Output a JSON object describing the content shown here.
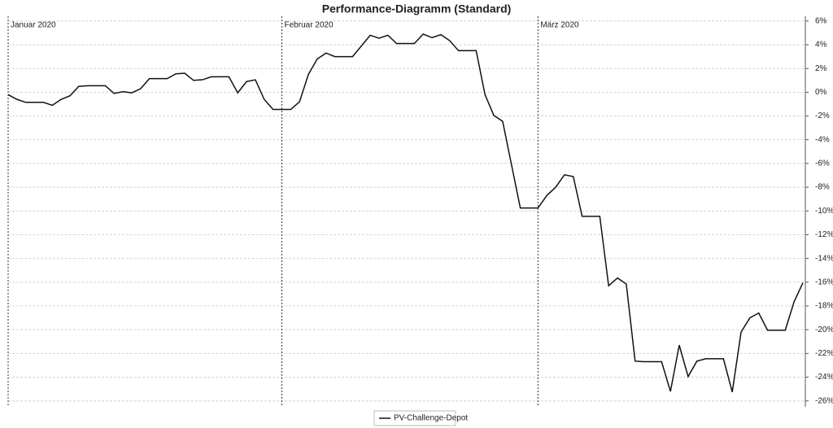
{
  "chart_data": {
    "type": "line",
    "title": "Performance-Diagramm (Standard)",
    "categories": [
      "Januar 2020",
      null,
      null,
      null,
      null,
      null,
      null,
      null,
      null,
      null,
      null,
      null,
      null,
      null,
      null,
      null,
      null,
      null,
      null,
      null,
      null,
      null,
      null,
      null,
      null,
      null,
      null,
      null,
      null,
      null,
      null,
      "Februar 2020",
      null,
      null,
      null,
      null,
      null,
      null,
      null,
      null,
      null,
      null,
      null,
      null,
      null,
      null,
      null,
      null,
      null,
      null,
      null,
      null,
      null,
      null,
      null,
      null,
      null,
      null,
      null,
      null,
      "März 2020",
      null,
      null,
      null,
      null,
      null,
      null,
      null,
      null,
      null,
      null,
      null,
      null,
      null,
      null,
      null,
      null,
      null,
      null,
      null,
      null,
      null,
      null,
      null,
      null,
      null,
      null,
      null,
      null,
      null,
      null
    ],
    "series": [
      {
        "name": "PV-Challenge-Depot",
        "color": "#111111",
        "values": [
          -0.2,
          -0.6,
          -0.85,
          -0.85,
          -0.85,
          -1.1,
          -0.6,
          -0.3,
          0.5,
          0.55,
          0.55,
          0.55,
          -0.1,
          0.05,
          -0.05,
          0.3,
          1.15,
          1.15,
          1.15,
          1.55,
          1.6,
          1.0,
          1.05,
          1.3,
          1.3,
          1.3,
          -0.05,
          0.9,
          1.05,
          -0.6,
          -1.45,
          -1.45,
          -1.45,
          -0.8,
          1.5,
          2.8,
          3.3,
          3.0,
          3.0,
          3.0,
          3.9,
          4.8,
          4.55,
          4.8,
          4.1,
          4.1,
          4.1,
          4.9,
          4.6,
          4.85,
          4.35,
          3.5,
          3.5,
          3.5,
          -0.2,
          -1.95,
          -2.45,
          -6.1,
          -9.75,
          -9.75,
          -9.75,
          -8.7,
          -8.0,
          -6.95,
          -7.1,
          -10.45,
          -10.45,
          -10.45,
          -16.3,
          -15.65,
          -16.15,
          -22.65,
          -22.7,
          -22.7,
          -22.7,
          -25.2,
          -21.3,
          -23.95,
          -22.65,
          -22.45,
          -22.45,
          -22.45,
          -25.25,
          -20.2,
          -19.0,
          -18.6,
          -20.05,
          -20.05,
          -20.05,
          -17.65,
          -16.05
        ]
      }
    ],
    "ylim": [
      -26.5,
      6.4
    ],
    "yticks": [
      {
        "value": 6,
        "label": "6%"
      },
      {
        "value": 4,
        "label": "4%"
      },
      {
        "value": 2,
        "label": "2%"
      },
      {
        "value": 0,
        "label": "0%"
      },
      {
        "value": -2,
        "label": "-2%"
      },
      {
        "value": -4,
        "label": "-4%"
      },
      {
        "value": -6,
        "label": "-6%"
      },
      {
        "value": -8,
        "label": "-8%"
      },
      {
        "value": -10,
        "label": "-10%"
      },
      {
        "value": -12,
        "label": "-12%"
      },
      {
        "value": -14,
        "label": "-14%"
      },
      {
        "value": -16,
        "label": "-16%"
      },
      {
        "value": -18,
        "label": "-18%"
      },
      {
        "value": -20,
        "label": "-20%"
      },
      {
        "value": -22,
        "label": "-22%"
      },
      {
        "value": -24,
        "label": "-24%"
      },
      {
        "value": -26,
        "label": "-26%"
      }
    ],
    "grid": true,
    "legend": "bottom"
  }
}
